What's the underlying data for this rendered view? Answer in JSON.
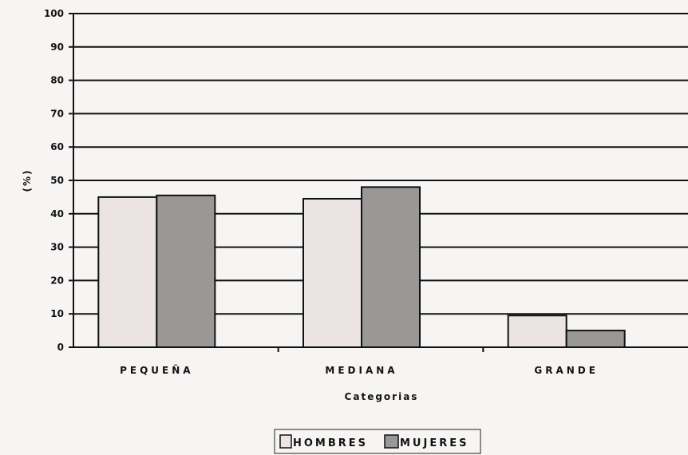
{
  "chart_data": {
    "type": "bar",
    "title": "",
    "xlabel": "Categorias",
    "ylabel": "(%)",
    "ylim": [
      0,
      100
    ],
    "yticks": [
      "0",
      "10",
      "20",
      "30",
      "40",
      "50",
      "60",
      "70",
      "80",
      "90",
      "100"
    ],
    "categories": [
      "PEQUEÑA",
      "MEDIANA",
      "GRANDE"
    ],
    "series": [
      {
        "name": "HOMBRES",
        "values": [
          45,
          44.5,
          9.5
        ]
      },
      {
        "name": "MUJERES",
        "values": [
          45.5,
          48,
          5
        ]
      }
    ],
    "grid": true,
    "legend": "bottom",
    "colors": {
      "background": "#f7f5f4",
      "HOMBRES": "#ebe3e4",
      "MUJERES": "#9a9797",
      "grid": "#111111"
    }
  }
}
